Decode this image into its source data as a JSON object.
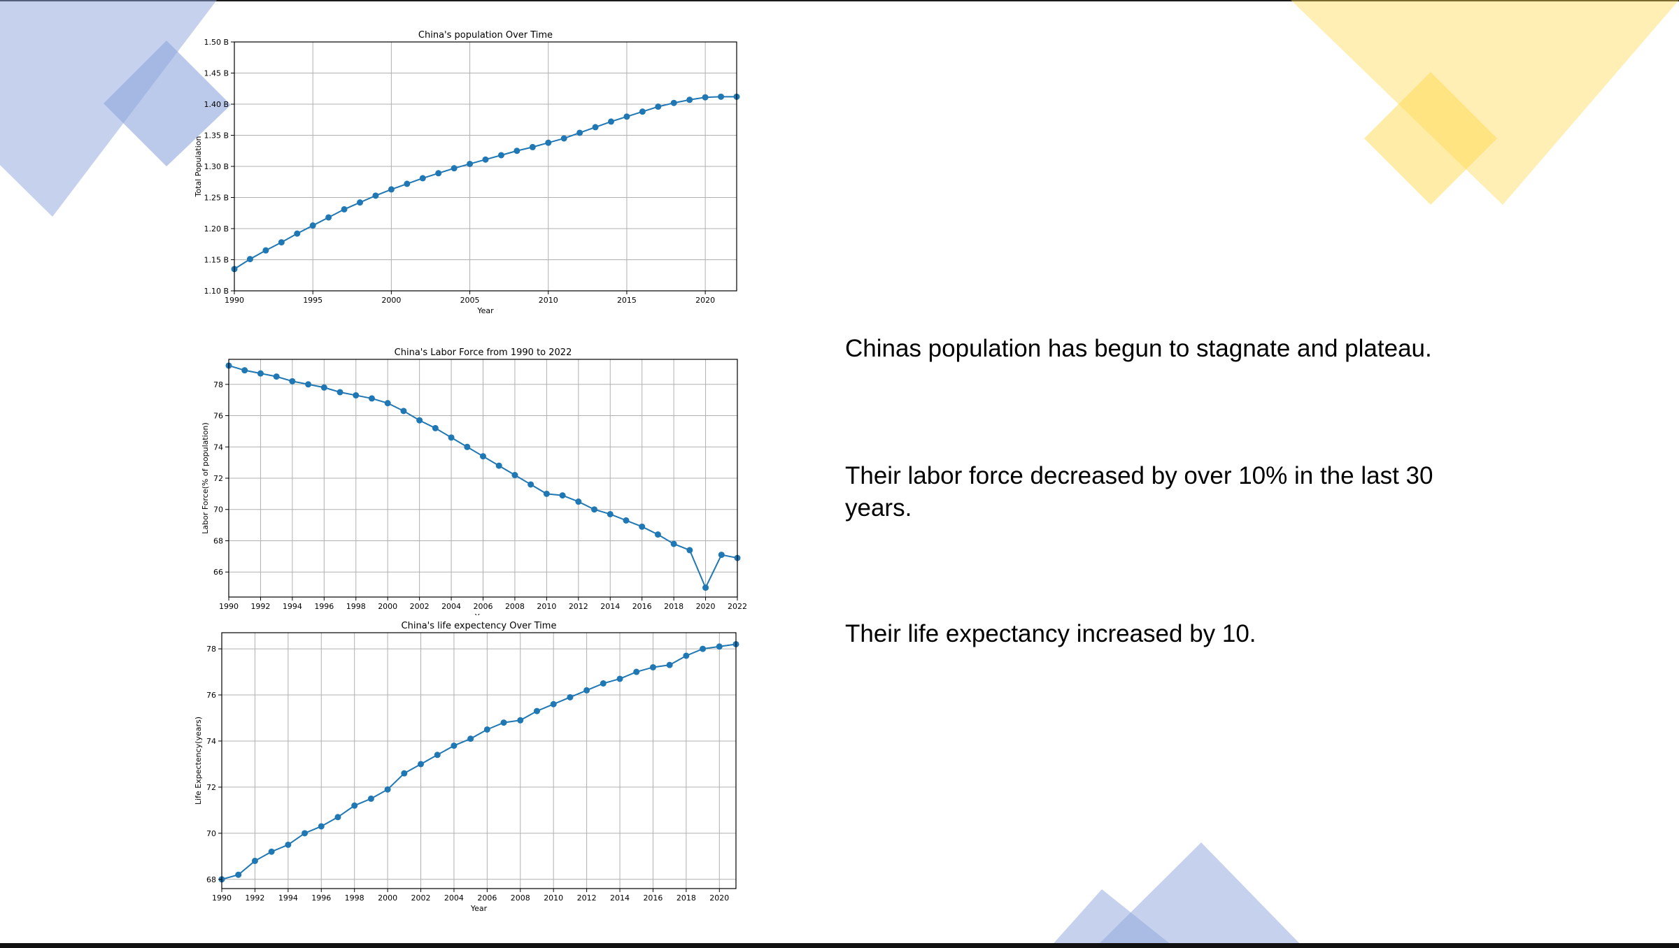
{
  "theme": {
    "deco_blue": "#8ea6dc",
    "deco_yellow": "#ffd94d",
    "series_color": "#1f77b4",
    "grid_color": "#b0b0b0"
  },
  "text_blocks": [
    "Chinas population has begun to stagnate and plateau.",
    "Their labor force decreased by over 10% in the last 30 years.",
    "Their life expectancy increased by 10."
  ],
  "chart_data": [
    {
      "type": "line",
      "title": "China's population Over Time",
      "xlabel": "Year",
      "ylabel": "Total Population",
      "xlim": [
        1990,
        2022
      ],
      "ylim": [
        1.1,
        1.5
      ],
      "grid": true,
      "xticks": [
        1990,
        1995,
        2000,
        2005,
        2010,
        2015,
        2020
      ],
      "xtick_labels": [
        "1990",
        "1995",
        "2000",
        "2005",
        "2010",
        "2015",
        "2020"
      ],
      "yticks": [
        1.1,
        1.15,
        1.2,
        1.25,
        1.3,
        1.35,
        1.4,
        1.45,
        1.5
      ],
      "ytick_labels": [
        "1.10 B",
        "1.15 B",
        "1.20 B",
        "1.25 B",
        "1.30 B",
        "1.35 B",
        "1.40 B",
        "1.45 B",
        "1.50 B"
      ],
      "series": [
        {
          "x": [
            1990,
            1991,
            1992,
            1993,
            1994,
            1995,
            1996,
            1997,
            1998,
            1999,
            2000,
            2001,
            2002,
            2003,
            2004,
            2005,
            2006,
            2007,
            2008,
            2009,
            2010,
            2011,
            2012,
            2013,
            2014,
            2015,
            2016,
            2017,
            2018,
            2019,
            2020,
            2021,
            2022
          ],
          "values": [
            1.135,
            1.151,
            1.165,
            1.178,
            1.192,
            1.205,
            1.218,
            1.231,
            1.242,
            1.253,
            1.263,
            1.272,
            1.281,
            1.289,
            1.297,
            1.304,
            1.311,
            1.318,
            1.325,
            1.331,
            1.338,
            1.345,
            1.354,
            1.363,
            1.372,
            1.38,
            1.388,
            1.396,
            1.402,
            1.407,
            1.411,
            1.412,
            1.412
          ]
        }
      ]
    },
    {
      "type": "line",
      "title": "China's Labor Force from 1990 to 2022",
      "xlabel": "Year",
      "ylabel": "Labor Force(% of population)",
      "xlim": [
        1990,
        2022
      ],
      "ylim": [
        64.4,
        79.6
      ],
      "grid": true,
      "xticks": [
        1990,
        1992,
        1994,
        1996,
        1998,
        2000,
        2002,
        2004,
        2006,
        2008,
        2010,
        2012,
        2014,
        2016,
        2018,
        2020,
        2022
      ],
      "xtick_labels": [
        "1990",
        "1992",
        "1994",
        "1996",
        "1998",
        "2000",
        "2002",
        "2004",
        "2006",
        "2008",
        "2010",
        "2012",
        "2014",
        "2016",
        "2018",
        "2020",
        "2022"
      ],
      "yticks": [
        66,
        68,
        70,
        72,
        74,
        76,
        78
      ],
      "ytick_labels": [
        "66",
        "68",
        "70",
        "72",
        "74",
        "76",
        "78"
      ],
      "series": [
        {
          "x": [
            1990,
            1991,
            1992,
            1993,
            1994,
            1995,
            1996,
            1997,
            1998,
            1999,
            2000,
            2001,
            2002,
            2003,
            2004,
            2005,
            2006,
            2007,
            2008,
            2009,
            2010,
            2011,
            2012,
            2013,
            2014,
            2015,
            2016,
            2017,
            2018,
            2019,
            2020,
            2021,
            2022
          ],
          "values": [
            79.2,
            78.9,
            78.7,
            78.5,
            78.2,
            78.0,
            77.8,
            77.5,
            77.3,
            77.1,
            76.8,
            76.3,
            75.7,
            75.2,
            74.6,
            74.0,
            73.4,
            72.8,
            72.2,
            71.6,
            71.0,
            70.9,
            70.5,
            70.0,
            69.7,
            69.3,
            68.9,
            68.4,
            67.8,
            67.4,
            65.0,
            67.1,
            66.9
          ]
        }
      ]
    },
    {
      "type": "line",
      "title": "China's life expectency Over Time",
      "xlabel": "Year",
      "ylabel": "Life Expectency(years)",
      "xlim": [
        1990,
        2021
      ],
      "ylim": [
        67.6,
        78.7
      ],
      "grid": true,
      "xticks": [
        1990,
        1992,
        1994,
        1996,
        1998,
        2000,
        2002,
        2004,
        2006,
        2008,
        2010,
        2012,
        2014,
        2016,
        2018,
        2020
      ],
      "xtick_labels": [
        "1990",
        "1992",
        "1994",
        "1996",
        "1998",
        "2000",
        "2002",
        "2004",
        "2006",
        "2008",
        "2010",
        "2012",
        "2014",
        "2016",
        "2018",
        "2020"
      ],
      "yticks": [
        68,
        70,
        72,
        74,
        76,
        78
      ],
      "ytick_labels": [
        "68",
        "70",
        "72",
        "74",
        "76",
        "78"
      ],
      "series": [
        {
          "x": [
            1990,
            1991,
            1992,
            1993,
            1994,
            1995,
            1996,
            1997,
            1998,
            1999,
            2000,
            2001,
            2002,
            2003,
            2004,
            2005,
            2006,
            2007,
            2008,
            2009,
            2010,
            2011,
            2012,
            2013,
            2014,
            2015,
            2016,
            2017,
            2018,
            2019,
            2020,
            2021
          ],
          "values": [
            68.0,
            68.2,
            68.8,
            69.2,
            69.5,
            70.0,
            70.3,
            70.7,
            71.2,
            71.5,
            71.9,
            72.6,
            73.0,
            73.4,
            73.8,
            74.1,
            74.5,
            74.8,
            74.9,
            75.3,
            75.6,
            75.9,
            76.2,
            76.5,
            76.7,
            77.0,
            77.2,
            77.3,
            77.7,
            78.0,
            78.1,
            78.2
          ]
        }
      ]
    }
  ]
}
